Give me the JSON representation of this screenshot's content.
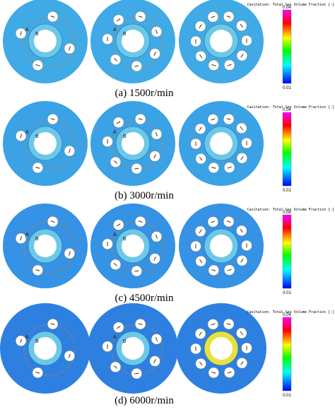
{
  "panels": [
    {
      "caption": "(a)  1500r/min",
      "colorbar": {
        "title": "Cavitation: Total Gas Volume Fraction [-]",
        "max": "0.04",
        "min": "0.01"
      },
      "point_labels": [
        [
          "A",
          "B"
        ],
        [
          "A",
          "B"
        ]
      ]
    },
    {
      "caption": "(b)  3000r/min",
      "colorbar": {
        "title": "Cavitation: Total Gas Volume Fraction [-]",
        "max": "0.04",
        "min": "0.01"
      },
      "point_labels": [
        [
          "A",
          "B"
        ],
        [
          "A",
          "B"
        ]
      ]
    },
    {
      "caption": "(c)  4500r/min",
      "colorbar": {
        "title": "Cavitation: Total Gas Volume Fraction [-]",
        "max": "0.04",
        "min": "0.01"
      },
      "point_labels": [
        [
          "A",
          "B"
        ],
        [
          "A",
          "B"
        ]
      ]
    },
    {
      "caption": "(d)  6000r/min",
      "colorbar": {
        "title": "Cavitation: Total Gas Volume Fraction [-]",
        "max": "0.04",
        "min": "0.01"
      },
      "point_labels": [
        [
          "A",
          "B"
        ],
        [
          "A",
          "B"
        ]
      ]
    }
  ]
}
